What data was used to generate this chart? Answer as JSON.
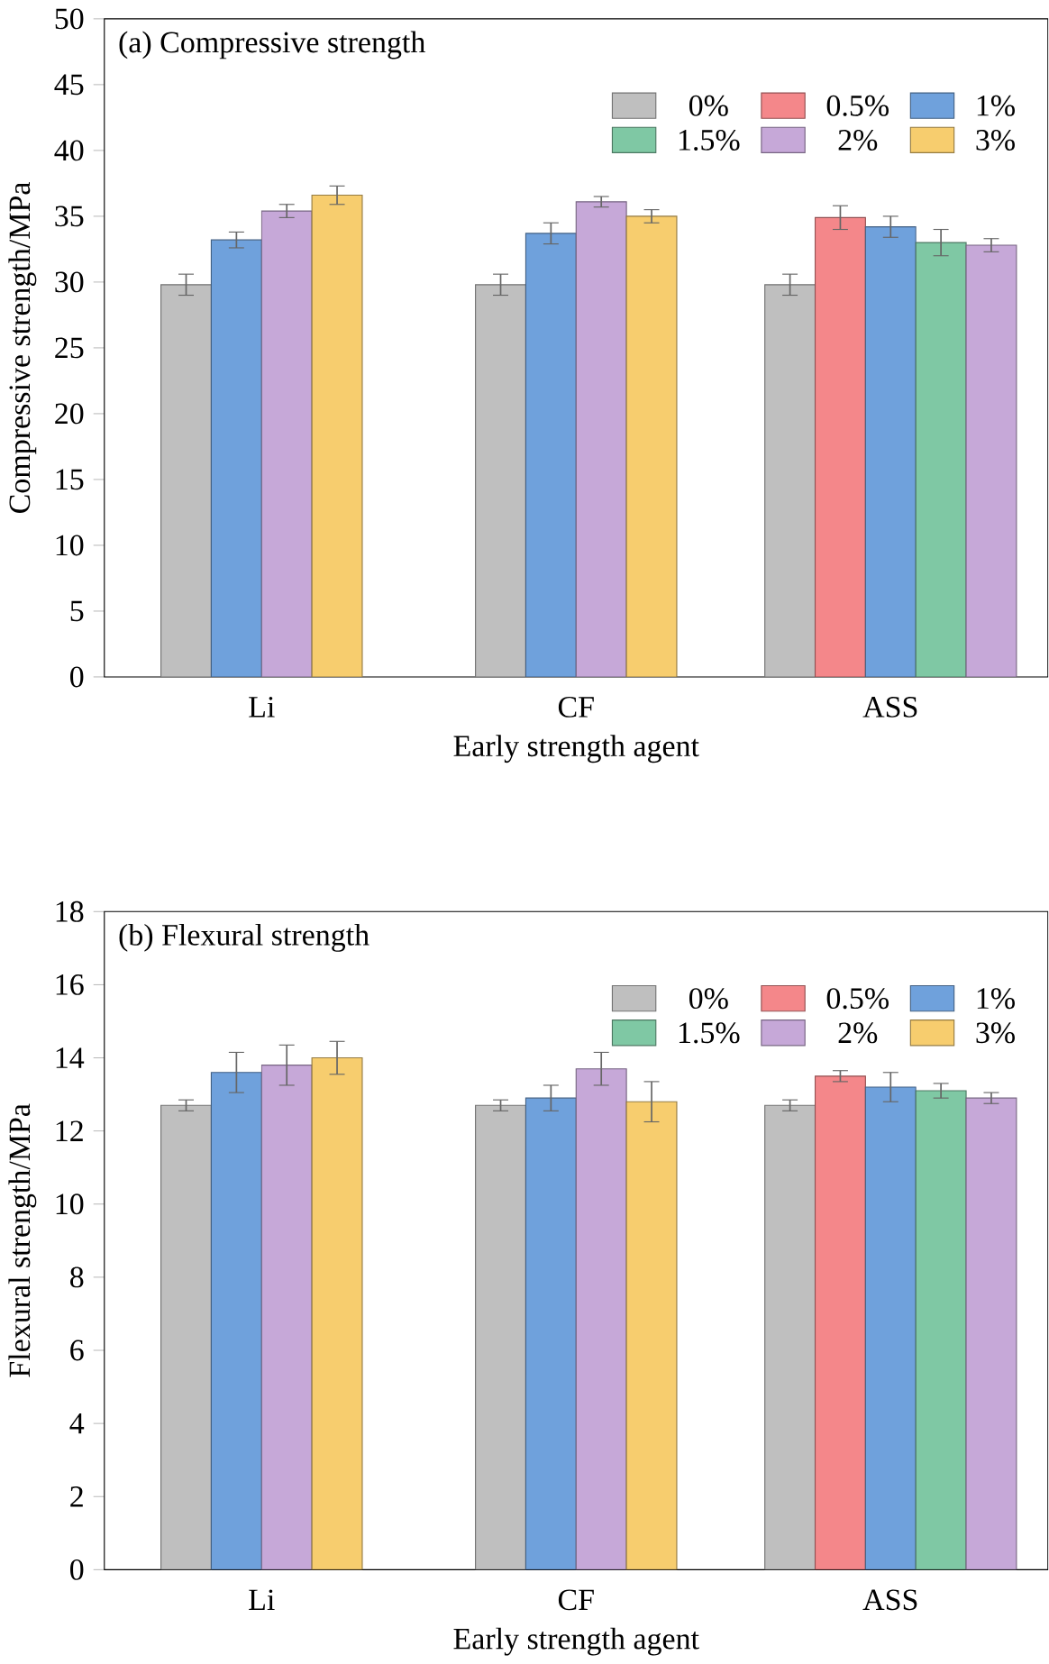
{
  "chart_data": [
    {
      "type": "bar",
      "title": "(a) Compressive strength",
      "xlabel": "Early strength agent",
      "ylabel": "Compressive strength/MPa",
      "categories": [
        "Li",
        "CF",
        "ASS"
      ],
      "ylim": [
        0,
        50
      ],
      "yticks": [
        0,
        5,
        10,
        15,
        20,
        25,
        30,
        35,
        40,
        45,
        50
      ],
      "legend": "top right",
      "series": [
        {
          "name": "0%",
          "color": "#bfbfbf",
          "values": [
            29.8,
            29.8,
            29.8
          ],
          "errors": [
            0.8,
            0.8,
            0.8
          ]
        },
        {
          "name": "0.5%",
          "color": "#f4878a",
          "values": [
            null,
            null,
            34.9
          ],
          "errors": [
            null,
            null,
            0.9
          ]
        },
        {
          "name": "1%",
          "color": "#6fa1dc",
          "values": [
            33.2,
            33.7,
            34.2
          ],
          "errors": [
            0.6,
            0.8,
            0.8
          ]
        },
        {
          "name": "1.5%",
          "color": "#7fc8a4",
          "values": [
            null,
            null,
            33.0
          ],
          "errors": [
            null,
            null,
            1.0
          ]
        },
        {
          "name": "2%",
          "color": "#c6a8d8",
          "values": [
            35.4,
            36.1,
            32.8
          ],
          "errors": [
            0.5,
            0.4,
            0.5
          ]
        },
        {
          "name": "3%",
          "color": "#f7cd6e",
          "values": [
            36.6,
            35.0,
            null
          ],
          "errors": [
            0.7,
            0.5,
            null
          ]
        }
      ]
    },
    {
      "type": "bar",
      "title": "(b) Flexural strength",
      "xlabel": "Early strength agent",
      "ylabel": "Flexural strength/MPa",
      "categories": [
        "Li",
        "CF",
        "ASS"
      ],
      "ylim": [
        0,
        18
      ],
      "yticks": [
        0,
        2,
        4,
        6,
        8,
        10,
        12,
        14,
        16,
        18
      ],
      "legend": "top right",
      "series": [
        {
          "name": "0%",
          "color": "#bfbfbf",
          "values": [
            12.7,
            12.7,
            12.7
          ],
          "errors": [
            0.15,
            0.15,
            0.15
          ]
        },
        {
          "name": "0.5%",
          "color": "#f4878a",
          "values": [
            null,
            null,
            13.5
          ],
          "errors": [
            null,
            null,
            0.15
          ]
        },
        {
          "name": "1%",
          "color": "#6fa1dc",
          "values": [
            13.6,
            12.9,
            13.2
          ],
          "errors": [
            0.55,
            0.35,
            0.4
          ]
        },
        {
          "name": "1.5%",
          "color": "#7fc8a4",
          "values": [
            null,
            null,
            13.1
          ],
          "errors": [
            null,
            null,
            0.2
          ]
        },
        {
          "name": "2%",
          "color": "#c6a8d8",
          "values": [
            13.8,
            13.7,
            12.9
          ],
          "errors": [
            0.55,
            0.45,
            0.15
          ]
        },
        {
          "name": "3%",
          "color": "#f7cd6e",
          "values": [
            14.0,
            12.8,
            null
          ],
          "errors": [
            0.45,
            0.55,
            null
          ]
        }
      ]
    }
  ]
}
